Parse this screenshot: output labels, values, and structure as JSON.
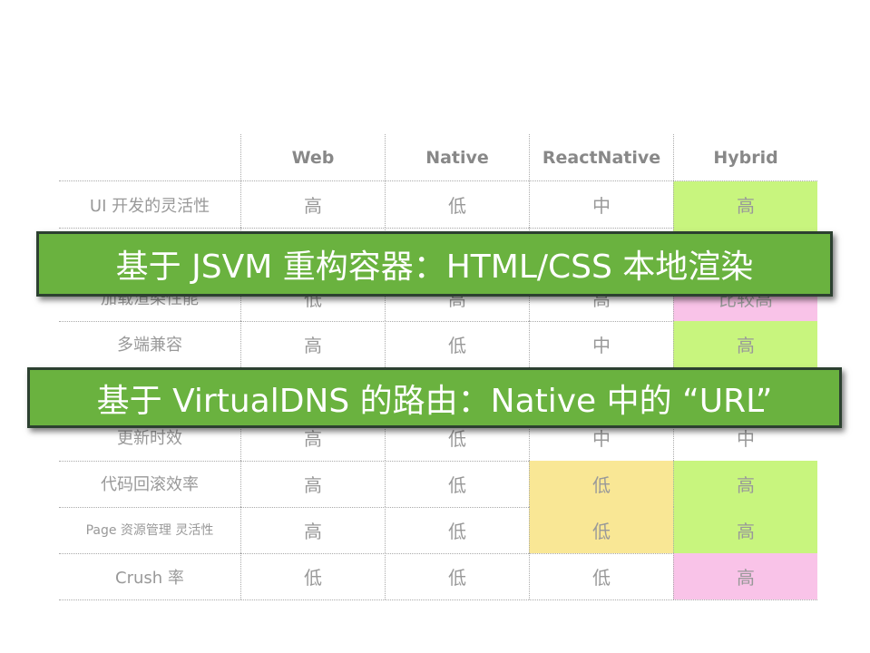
{
  "table": {
    "headers": [
      "",
      "Web",
      "Native",
      "ReactNative",
      "Hybrid"
    ],
    "rows": [
      {
        "label": "UI 开发的灵活性",
        "cells": [
          "高",
          "低",
          "中",
          "高"
        ],
        "colors": [
          "",
          "",
          "",
          "#c8f57e"
        ]
      },
      {
        "label": "",
        "cells": [
          "",
          "",
          "",
          ""
        ],
        "colors": [
          "",
          "",
          "",
          "#c8f57e"
        ]
      },
      {
        "label": "加载渲染性能",
        "cells": [
          "低",
          "高",
          "高",
          "比较高"
        ],
        "colors": [
          "",
          "",
          "",
          "#f9c3e8"
        ]
      },
      {
        "label": "多端兼容",
        "cells": [
          "高",
          "低",
          "中",
          "高"
        ],
        "colors": [
          "",
          "",
          "",
          "#c8f57e"
        ]
      },
      {
        "label": "",
        "cells": [
          "",
          "",
          "",
          ""
        ],
        "colors": [
          "",
          "",
          "",
          ""
        ]
      },
      {
        "label": "更新时效",
        "cells": [
          "高",
          "低",
          "中",
          "中"
        ],
        "colors": [
          "",
          "",
          "",
          ""
        ]
      },
      {
        "label": "代码回滚效率",
        "cells": [
          "高",
          "低",
          "低",
          "高"
        ],
        "colors": [
          "",
          "",
          "#f9e795",
          "#c8f57e"
        ]
      },
      {
        "label": "Page 资源管理 灵活性",
        "cells": [
          "高",
          "低",
          "低",
          "高"
        ],
        "colors": [
          "",
          "",
          "#f9e795",
          "#c8f57e"
        ]
      },
      {
        "label": "Crush 率",
        "cells": [
          "低",
          "低",
          "低",
          "高"
        ],
        "colors": [
          "",
          "",
          "",
          "#f9c3e8"
        ]
      }
    ]
  },
  "banners": {
    "first": "基于 JSVM 重构容器：HTML/CSS 本地渲染",
    "second": "基于 VirtualDNS 的路由：Native 中的 “URL”"
  },
  "colors": {
    "banner": "#6ab23f",
    "good": "#c8f57e",
    "bad": "#f9c3e8",
    "warn": "#f9e795"
  }
}
